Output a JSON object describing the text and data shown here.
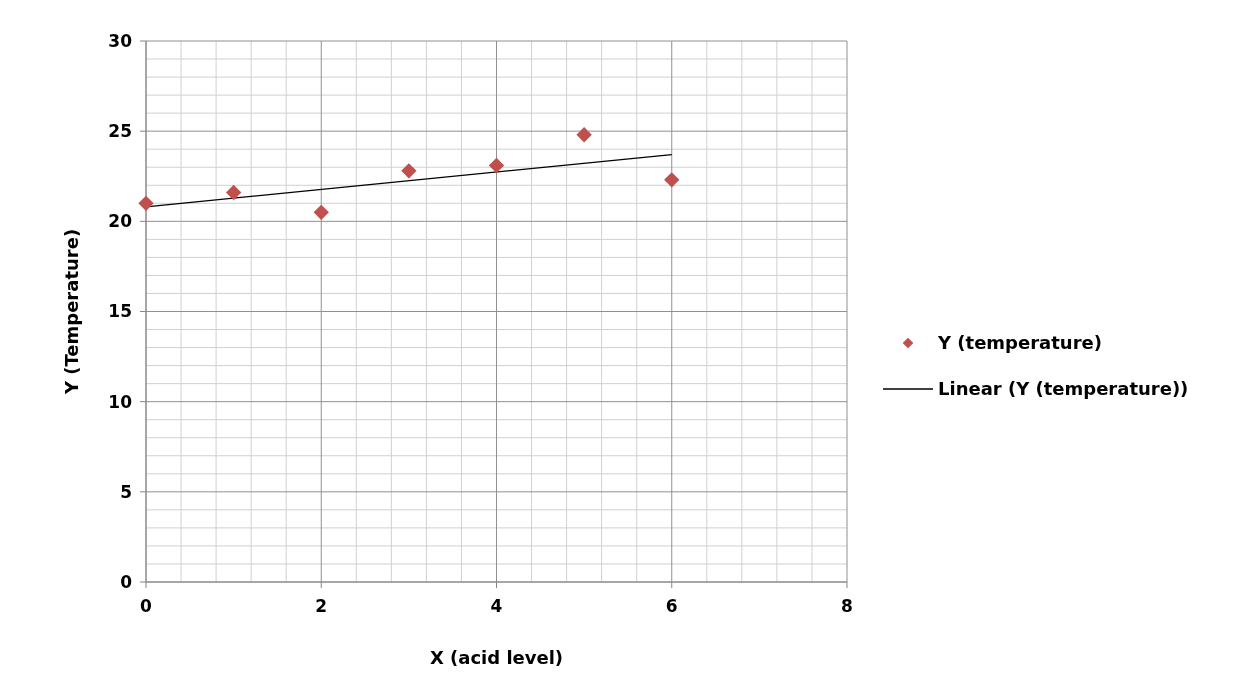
{
  "chart_data": {
    "type": "scatter",
    "xlabel": "X (acid level)",
    "ylabel": "Y (Temperature)",
    "xlim": [
      0,
      8
    ],
    "xticks": [
      0,
      2,
      4,
      6,
      8
    ],
    "ylim": [
      0,
      30
    ],
    "yticks": [
      0,
      5,
      10,
      15,
      20,
      25,
      30
    ],
    "grid": true,
    "legend": "right",
    "marker": "diamond",
    "series": [
      {
        "name": "Y (temperature)",
        "color": "#c0504d",
        "x": [
          0,
          1,
          2,
          3,
          4,
          5,
          6
        ],
        "values": [
          21.0,
          21.6,
          20.5,
          22.8,
          23.1,
          24.8,
          22.3
        ]
      },
      {
        "name": "Linear (Y (temperature))",
        "type": "line",
        "color": "#000000",
        "x": [
          0,
          6
        ],
        "values": [
          20.8,
          23.7
        ],
        "line_style": "solid",
        "marker": "none"
      }
    ]
  }
}
